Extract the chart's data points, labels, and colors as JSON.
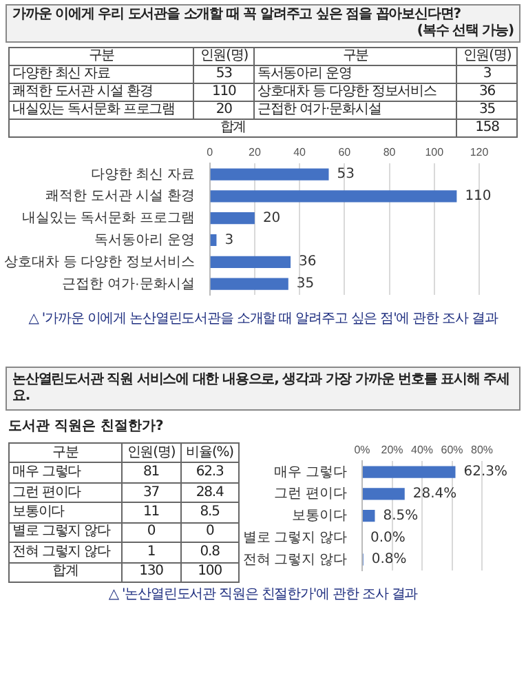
{
  "chart_data": [
    {
      "type": "bar",
      "orientation": "horizontal",
      "title": "가까운 이에게 우리 도서관을 소개할 때 꼭 알려주고 싶은 점을 꼽아보신다면?",
      "subtitle": "(복수 선택 가능)",
      "categories": [
        "다양한 최신 자료",
        "쾌적한 도서관 시설 환경",
        "내실있는 독서문화 프로그램",
        "독서동아리 운영",
        "상호대차 등 다양한 정보서비스",
        "근접한 여가·문화시설"
      ],
      "values": [
        53,
        110,
        20,
        3,
        36,
        35
      ],
      "color": "#4472c4",
      "xlim": [
        0,
        120
      ],
      "xticks": [
        0,
        20,
        40,
        60,
        80,
        100,
        120
      ],
      "grid": "x",
      "data_labels": true,
      "annotations": [
        "구분",
        "인원(명)",
        "53",
        "110",
        "20",
        "3",
        "36",
        "35",
        "합계",
        "158",
        "△ '가까운 이에게 논산열린도서관을 소개할 때 알려주고 싶은 점'에 관한 조사 결과"
      ]
    },
    {
      "type": "bar",
      "orientation": "horizontal",
      "title": "논산열린도서관 직원 서비스에 대한 내용으로, 생각과 가장 가까운 번호를 표시해 주세요.",
      "subtitle": "도서관 직원은 친절한가?",
      "categories": [
        "매우 그렇다",
        "그런 편이다",
        "보통이다",
        "별로 그렇지 않다",
        "전혀 그렇지 않다"
      ],
      "values": [
        62.3,
        28.4,
        8.5,
        0,
        0.8
      ],
      "color": "#4472c4",
      "xlim": [
        0,
        80
      ],
      "xticks": [
        {
          "value": 0,
          "label": "0%"
        },
        {
          "value": 20,
          "label": "20%"
        },
        {
          "value": 40,
          "label": "40%"
        },
        {
          "value": 60,
          "label": "60%"
        },
        {
          "value": 80,
          "label": "80%"
        }
      ],
      "grid": "x",
      "value_labels": [
        "62.3%",
        "28.4%",
        "8.5%",
        "0.0%",
        "0.8%"
      ],
      "annotations": [
        "구분",
        "인원(명)",
        "비율(%)",
        "81",
        "37",
        "11",
        "0",
        "1",
        "62.3",
        "28.4",
        "8.5",
        "0",
        "0.8",
        "합계",
        "130",
        "100",
        "△ '논산열린도서관 직원은 친절한가'에 관한 조사 결과"
      ]
    }
  ]
}
